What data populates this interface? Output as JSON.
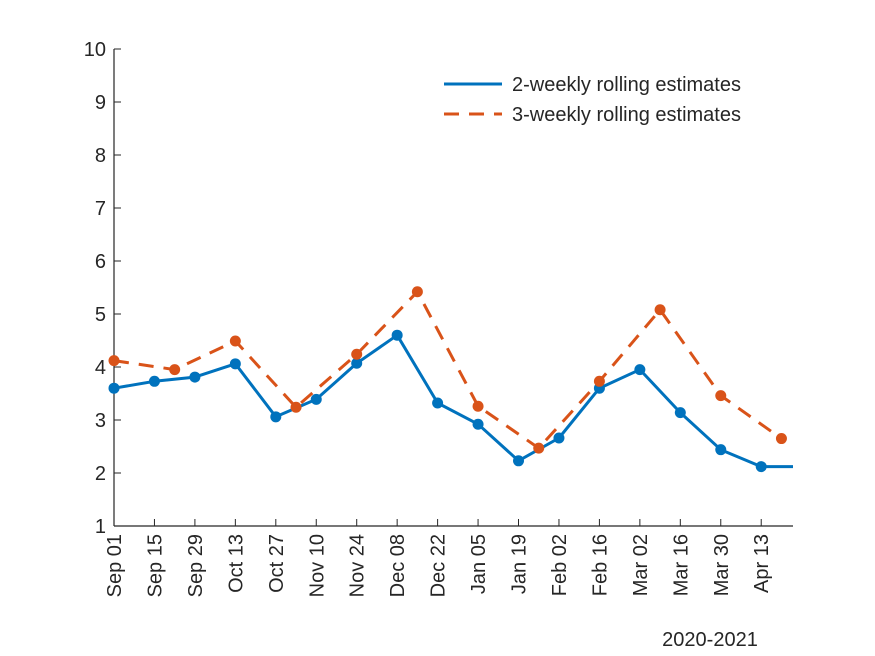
{
  "chart_data": {
    "type": "line",
    "title": "",
    "xlabel": "2020-2021",
    "ylabel": "",
    "ylim": [
      1,
      10
    ],
    "yticks": [
      1,
      2,
      3,
      4,
      5,
      6,
      7,
      8,
      9,
      10
    ],
    "xlim_days": [
      0,
      235
    ],
    "x_ticks": [
      {
        "day": 0,
        "label": "Sep 01"
      },
      {
        "day": 14,
        "label": "Sep 15"
      },
      {
        "day": 28,
        "label": "Sep 29"
      },
      {
        "day": 42,
        "label": "Oct 13"
      },
      {
        "day": 56,
        "label": "Oct 27"
      },
      {
        "day": 70,
        "label": "Nov 10"
      },
      {
        "day": 84,
        "label": "Nov 24"
      },
      {
        "day": 98,
        "label": "Dec 08"
      },
      {
        "day": 112,
        "label": "Dec 22"
      },
      {
        "day": 126,
        "label": "Jan 05"
      },
      {
        "day": 140,
        "label": "Jan 19"
      },
      {
        "day": 154,
        "label": "Feb 02"
      },
      {
        "day": 168,
        "label": "Feb 16"
      },
      {
        "day": 182,
        "label": "Mar 02"
      },
      {
        "day": 196,
        "label": "Mar 16"
      },
      {
        "day": 210,
        "label": "Mar 30"
      },
      {
        "day": 224,
        "label": "Apr 13"
      }
    ],
    "legend_position": "top-right",
    "series": [
      {
        "name": "2-weekly rolling estimates",
        "color": "#0072BD",
        "dash": "solid",
        "x": [
          0,
          14,
          28,
          42,
          56,
          70,
          84,
          98,
          112,
          126,
          140,
          154,
          168,
          182,
          196,
          210,
          224,
          235
        ],
        "y": [
          3.6,
          3.73,
          3.81,
          4.06,
          3.06,
          3.39,
          4.07,
          4.6,
          3.32,
          2.92,
          2.23,
          2.66,
          3.6,
          3.95,
          3.14,
          2.44,
          2.12,
          2.12
        ],
        "markers": [
          true,
          true,
          true,
          true,
          true,
          true,
          true,
          true,
          true,
          true,
          true,
          true,
          true,
          true,
          true,
          true,
          true,
          false
        ]
      },
      {
        "name": "3-weekly rolling estimates",
        "color": "#D95319",
        "dash": "dashed",
        "x": [
          0,
          21,
          42,
          63,
          84,
          105,
          126,
          147,
          168,
          189,
          210,
          231
        ],
        "y": [
          4.12,
          3.95,
          4.49,
          3.24,
          4.24,
          5.42,
          3.26,
          2.47,
          3.73,
          5.08,
          3.46,
          2.65
        ],
        "markers": [
          true,
          true,
          true,
          true,
          true,
          true,
          true,
          true,
          true,
          true,
          true,
          true
        ]
      }
    ]
  }
}
